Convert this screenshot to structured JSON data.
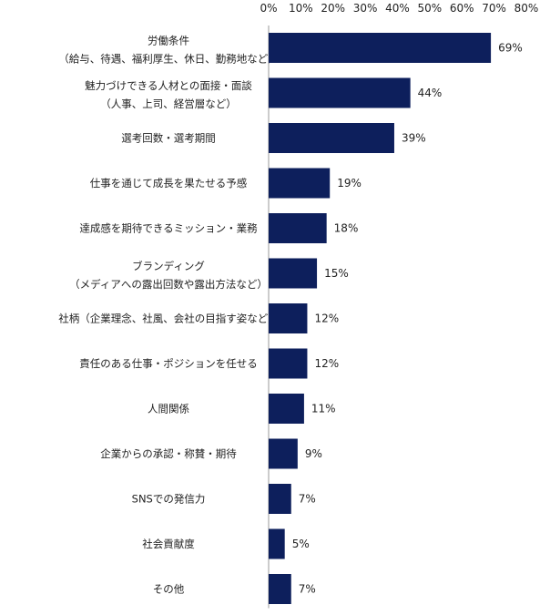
{
  "chart_data": {
    "type": "bar",
    "orientation": "horizontal",
    "title": "",
    "xlabel": "",
    "ylabel": "",
    "xlim": [
      0,
      80
    ],
    "x_ticks": [
      "0%",
      "10%",
      "20%",
      "30%",
      "40%",
      "50%",
      "60%",
      "70%",
      "80%"
    ],
    "x_tick_values": [
      0,
      10,
      20,
      30,
      40,
      50,
      60,
      70,
      80
    ],
    "grid": false,
    "bar_color": "#0d1f5c",
    "categories": [
      [
        "労働条件",
        "（給与、待遇、福利厚生、休日、勤務地など）"
      ],
      [
        "魅力づけできる人材との面接・面談",
        "（人事、上司、経営層など）"
      ],
      [
        "選考回数・選考期間"
      ],
      [
        "仕事を通じて成長を果たせる予感"
      ],
      [
        "達成感を期待できるミッション・業務"
      ],
      [
        "ブランディング",
        "（メディアへの露出回数や露出方法など）"
      ],
      [
        "社柄（企業理念、社風、会社の目指す姿など）"
      ],
      [
        "責任のある仕事・ポジションを任せる"
      ],
      [
        "人間関係"
      ],
      [
        "企業からの承認・称賛・期待"
      ],
      [
        "SNSでの発信力"
      ],
      [
        "社会貢献度"
      ],
      [
        "その他"
      ]
    ],
    "values": [
      69,
      44,
      39,
      19,
      18,
      15,
      12,
      12,
      11,
      9,
      7,
      5,
      7
    ],
    "value_labels": [
      "69%",
      "44%",
      "39%",
      "19%",
      "18%",
      "15%",
      "12%",
      "12%",
      "11%",
      "9%",
      "7%",
      "5%",
      "7%"
    ]
  }
}
